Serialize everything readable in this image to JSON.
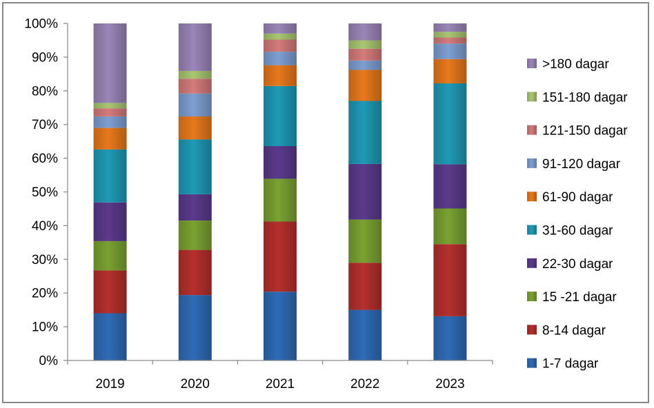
{
  "chart_data": {
    "type": "bar",
    "stacked": true,
    "percent_stacked": true,
    "title": "",
    "xlabel": "",
    "ylabel": "",
    "ylim": [
      0,
      100
    ],
    "y_ticks": [
      "0%",
      "10%",
      "20%",
      "30%",
      "40%",
      "50%",
      "60%",
      "70%",
      "80%",
      "90%",
      "100%"
    ],
    "categories": [
      "2019",
      "2020",
      "2021",
      "2022",
      "2023"
    ],
    "grid": false,
    "legend_position": "right",
    "series": [
      {
        "name": "1-7 dagar",
        "color": "#2f6bb6",
        "values": [
          14.0,
          19.4,
          20.4,
          15.0,
          13.1
        ]
      },
      {
        "name": "8-14 dagar",
        "color": "#b5302d",
        "values": [
          12.7,
          13.4,
          20.8,
          14.0,
          21.4
        ]
      },
      {
        "name": "15 -21 dagar",
        "color": "#7aa232",
        "values": [
          8.7,
          8.7,
          12.7,
          12.8,
          10.6
        ]
      },
      {
        "name": "22-30 dagar",
        "color": "#5b3a8c",
        "values": [
          11.5,
          7.8,
          9.7,
          16.5,
          13.1
        ]
      },
      {
        "name": "31-60 dagar",
        "color": "#1f9ab6",
        "values": [
          15.7,
          16.3,
          17.8,
          18.7,
          24.0
        ]
      },
      {
        "name": "61-90 dagar",
        "color": "#e8791c",
        "values": [
          6.4,
          6.8,
          6.2,
          9.2,
          7.2
        ]
      },
      {
        "name": "91-120 dagar",
        "color": "#7e9fd2",
        "values": [
          3.4,
          6.8,
          4.0,
          2.8,
          4.6
        ]
      },
      {
        "name": "121-150 dagar",
        "color": "#d57b7b",
        "values": [
          2.4,
          4.4,
          3.6,
          3.5,
          1.8
        ]
      },
      {
        "name": "151-180 dagar",
        "color": "#a9c771",
        "values": [
          1.6,
          2.3,
          1.8,
          2.5,
          1.7
        ]
      },
      {
        "name": ">180 dagar",
        "color": "#9b86b8",
        "values": [
          23.6,
          14.1,
          3.0,
          5.0,
          2.5
        ]
      }
    ]
  }
}
